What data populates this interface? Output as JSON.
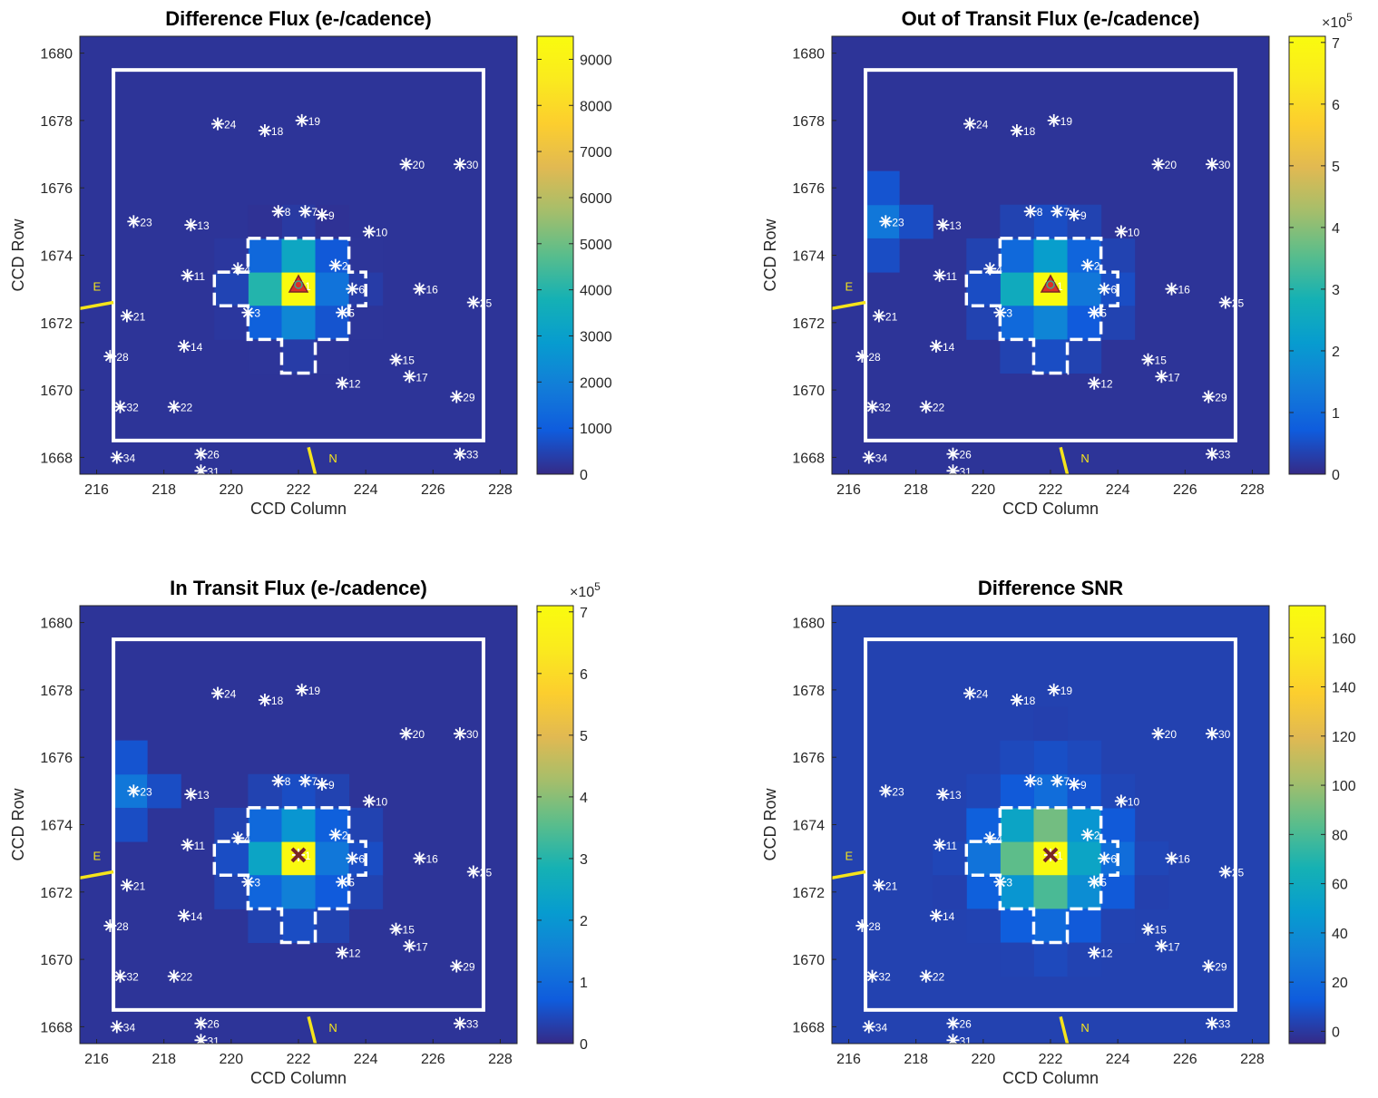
{
  "figure": {
    "panels": [
      {
        "id": "diff",
        "title": "Difference Flux (e-/cadence)",
        "xlabel": "CCD Column",
        "ylabel": "CCD Row",
        "marker": "triangle",
        "colorbar": {
          "min": 0,
          "max": 9500,
          "ticks": [
            0,
            1000,
            2000,
            3000,
            4000,
            5000,
            6000,
            7000,
            8000,
            9000
          ],
          "tick_labels": [
            "0",
            "1000",
            "2000",
            "3000",
            "4000",
            "5000",
            "6000",
            "7000",
            "8000",
            "9000"
          ],
          "exponent": ""
        }
      },
      {
        "id": "oot",
        "title": "Out of Transit Flux (e-/cadence)",
        "xlabel": "CCD Column",
        "ylabel": "CCD Row",
        "marker": "triangle",
        "colorbar": {
          "min": 0,
          "max": 7.1,
          "ticks": [
            0,
            1,
            2,
            3,
            4,
            5,
            6,
            7
          ],
          "tick_labels": [
            "0",
            "1",
            "2",
            "3",
            "4",
            "5",
            "6",
            "7"
          ],
          "exponent": "×10",
          "exponent_power": "5"
        }
      },
      {
        "id": "intr",
        "title": "In Transit Flux (e-/cadence)",
        "xlabel": "CCD Column",
        "ylabel": "CCD Row",
        "marker": "x",
        "colorbar": {
          "min": 0,
          "max": 7.1,
          "ticks": [
            0,
            1,
            2,
            3,
            4,
            5,
            6,
            7
          ],
          "tick_labels": [
            "0",
            "1",
            "2",
            "3",
            "4",
            "5",
            "6",
            "7"
          ],
          "exponent": "×10",
          "exponent_power": "5"
        }
      },
      {
        "id": "snr",
        "title": "Difference SNR",
        "xlabel": "CCD Column",
        "ylabel": "CCD Row",
        "marker": "x",
        "colorbar": {
          "min": -5,
          "max": 173,
          "ticks": [
            0,
            20,
            40,
            60,
            80,
            100,
            120,
            140,
            160
          ],
          "tick_labels": [
            "0",
            "20",
            "40",
            "60",
            "80",
            "100",
            "120",
            "140",
            "160"
          ],
          "exponent": ""
        }
      }
    ],
    "compass": {
      "east_label": "E",
      "north_label": "N"
    }
  },
  "chart_data": {
    "type": "heatmap",
    "colormap": "parula",
    "x_ticks": [
      216,
      218,
      220,
      222,
      224,
      226,
      228
    ],
    "y_ticks": [
      1668,
      1670,
      1672,
      1674,
      1676,
      1678,
      1680
    ],
    "xlim": [
      215.5,
      228.5
    ],
    "ylim": [
      1667.5,
      1680.5
    ],
    "stars": [
      {
        "label": "1",
        "x": 222.0,
        "y": 1673.1
      },
      {
        "label": "2",
        "x": 223.1,
        "y": 1673.7
      },
      {
        "label": "3",
        "x": 220.5,
        "y": 1672.3
      },
      {
        "label": "4",
        "x": 220.2,
        "y": 1673.6
      },
      {
        "label": "5",
        "x": 223.3,
        "y": 1672.3
      },
      {
        "label": "6",
        "x": 223.6,
        "y": 1673.0
      },
      {
        "label": "7",
        "x": 222.2,
        "y": 1675.3
      },
      {
        "label": "8",
        "x": 221.4,
        "y": 1675.3
      },
      {
        "label": "9",
        "x": 222.7,
        "y": 1675.2
      },
      {
        "label": "10",
        "x": 224.1,
        "y": 1674.7
      },
      {
        "label": "11",
        "x": 218.7,
        "y": 1673.4
      },
      {
        "label": "12",
        "x": 223.3,
        "y": 1670.2
      },
      {
        "label": "13",
        "x": 218.8,
        "y": 1674.9
      },
      {
        "label": "14",
        "x": 218.6,
        "y": 1671.3
      },
      {
        "label": "15",
        "x": 224.9,
        "y": 1670.9
      },
      {
        "label": "16",
        "x": 225.6,
        "y": 1673.0
      },
      {
        "label": "17",
        "x": 225.3,
        "y": 1670.4
      },
      {
        "label": "18",
        "x": 221.0,
        "y": 1677.7
      },
      {
        "label": "19",
        "x": 222.1,
        "y": 1678.0
      },
      {
        "label": "20",
        "x": 225.2,
        "y": 1676.7
      },
      {
        "label": "21",
        "x": 216.9,
        "y": 1672.2
      },
      {
        "label": "22",
        "x": 218.3,
        "y": 1669.5
      },
      {
        "label": "23",
        "x": 217.1,
        "y": 1675.0
      },
      {
        "label": "24",
        "x": 219.6,
        "y": 1677.9
      },
      {
        "label": "25",
        "x": 227.2,
        "y": 1672.6
      },
      {
        "label": "26",
        "x": 219.1,
        "y": 1668.1
      },
      {
        "label": "28",
        "x": 216.4,
        "y": 1671.0
      },
      {
        "label": "29",
        "x": 226.7,
        "y": 1669.8
      },
      {
        "label": "30",
        "x": 226.8,
        "y": 1676.7
      },
      {
        "label": "31",
        "x": 219.1,
        "y": 1667.6
      },
      {
        "label": "32",
        "x": 216.7,
        "y": 1669.5
      },
      {
        "label": "33",
        "x": 226.8,
        "y": 1668.1
      },
      {
        "label": "34",
        "x": 216.6,
        "y": 1668.0
      }
    ],
    "heatmaps": {
      "diff": [
        {
          "x": 221,
          "y": 1673,
          "v": 4000
        },
        {
          "x": 222,
          "y": 1673,
          "v": 9500
        },
        {
          "x": 223,
          "y": 1673,
          "v": 1600
        },
        {
          "x": 221,
          "y": 1674,
          "v": 1300
        },
        {
          "x": 222,
          "y": 1674,
          "v": 3300
        },
        {
          "x": 223,
          "y": 1674,
          "v": 900
        },
        {
          "x": 221,
          "y": 1672,
          "v": 1100
        },
        {
          "x": 222,
          "y": 1672,
          "v": 2200
        },
        {
          "x": 223,
          "y": 1672,
          "v": 800
        },
        {
          "x": 220,
          "y": 1673,
          "v": 500
        },
        {
          "x": 224,
          "y": 1673,
          "v": 350
        },
        {
          "x": 222,
          "y": 1675,
          "v": 300
        },
        {
          "x": 222,
          "y": 1671,
          "v": 350
        },
        {
          "x": 220,
          "y": 1674,
          "v": 250
        },
        {
          "x": 224,
          "y": 1674,
          "v": 200
        },
        {
          "x": 220,
          "y": 1672,
          "v": 250
        },
        {
          "x": 224,
          "y": 1672,
          "v": 200
        },
        {
          "x": 221,
          "y": 1671,
          "v": 200
        },
        {
          "x": 223,
          "y": 1671,
          "v": 200
        },
        {
          "x": 221,
          "y": 1675,
          "v": 150
        },
        {
          "x": 223,
          "y": 1675,
          "v": 150
        }
      ],
      "oot": [
        {
          "x": 221,
          "y": 1673,
          "v": 2.6
        },
        {
          "x": 222,
          "y": 1673,
          "v": 7.1
        },
        {
          "x": 223,
          "y": 1673,
          "v": 1.3
        },
        {
          "x": 221,
          "y": 1674,
          "v": 1.0
        },
        {
          "x": 222,
          "y": 1674,
          "v": 2.2
        },
        {
          "x": 223,
          "y": 1674,
          "v": 0.9
        },
        {
          "x": 221,
          "y": 1672,
          "v": 1.0
        },
        {
          "x": 222,
          "y": 1672,
          "v": 1.6
        },
        {
          "x": 223,
          "y": 1672,
          "v": 0.7
        },
        {
          "x": 220,
          "y": 1673,
          "v": 0.5
        },
        {
          "x": 224,
          "y": 1673,
          "v": 0.5
        },
        {
          "x": 222,
          "y": 1675,
          "v": 0.5
        },
        {
          "x": 222,
          "y": 1671,
          "v": 0.5
        },
        {
          "x": 220,
          "y": 1674,
          "v": 0.35
        },
        {
          "x": 224,
          "y": 1674,
          "v": 0.35
        },
        {
          "x": 220,
          "y": 1672,
          "v": 0.35
        },
        {
          "x": 224,
          "y": 1672,
          "v": 0.35
        },
        {
          "x": 221,
          "y": 1671,
          "v": 0.35
        },
        {
          "x": 223,
          "y": 1671,
          "v": 0.35
        },
        {
          "x": 221,
          "y": 1675,
          "v": 0.35
        },
        {
          "x": 223,
          "y": 1675,
          "v": 0.35
        },
        {
          "x": 217,
          "y": 1675,
          "v": 1.3
        },
        {
          "x": 217,
          "y": 1676,
          "v": 0.6
        },
        {
          "x": 217,
          "y": 1674,
          "v": 0.5
        },
        {
          "x": 218,
          "y": 1675,
          "v": 0.5
        }
      ],
      "intr": [
        {
          "x": 221,
          "y": 1673,
          "v": 2.4
        },
        {
          "x": 222,
          "y": 1673,
          "v": 7.0
        },
        {
          "x": 223,
          "y": 1673,
          "v": 1.3
        },
        {
          "x": 221,
          "y": 1674,
          "v": 1.0
        },
        {
          "x": 222,
          "y": 1674,
          "v": 2.0
        },
        {
          "x": 223,
          "y": 1674,
          "v": 0.8
        },
        {
          "x": 221,
          "y": 1672,
          "v": 0.9
        },
        {
          "x": 222,
          "y": 1672,
          "v": 1.5
        },
        {
          "x": 223,
          "y": 1672,
          "v": 0.7
        },
        {
          "x": 220,
          "y": 1673,
          "v": 0.5
        },
        {
          "x": 224,
          "y": 1673,
          "v": 0.5
        },
        {
          "x": 222,
          "y": 1675,
          "v": 0.5
        },
        {
          "x": 222,
          "y": 1671,
          "v": 0.5
        },
        {
          "x": 220,
          "y": 1674,
          "v": 0.35
        },
        {
          "x": 224,
          "y": 1674,
          "v": 0.35
        },
        {
          "x": 220,
          "y": 1672,
          "v": 0.35
        },
        {
          "x": 224,
          "y": 1672,
          "v": 0.35
        },
        {
          "x": 221,
          "y": 1671,
          "v": 0.35
        },
        {
          "x": 223,
          "y": 1671,
          "v": 0.35
        },
        {
          "x": 221,
          "y": 1675,
          "v": 0.35
        },
        {
          "x": 223,
          "y": 1675,
          "v": 0.35
        },
        {
          "x": 217,
          "y": 1675,
          "v": 1.3
        },
        {
          "x": 217,
          "y": 1676,
          "v": 0.6
        },
        {
          "x": 217,
          "y": 1674,
          "v": 0.5
        },
        {
          "x": 218,
          "y": 1675,
          "v": 0.5
        }
      ],
      "snr": [
        {
          "x": 221,
          "y": 1673,
          "v": 85
        },
        {
          "x": 222,
          "y": 1673,
          "v": 173
        },
        {
          "x": 223,
          "y": 1673,
          "v": 55
        },
        {
          "x": 221,
          "y": 1674,
          "v": 55
        },
        {
          "x": 222,
          "y": 1674,
          "v": 90
        },
        {
          "x": 223,
          "y": 1674,
          "v": 45
        },
        {
          "x": 221,
          "y": 1672,
          "v": 45
        },
        {
          "x": 222,
          "y": 1672,
          "v": 80
        },
        {
          "x": 223,
          "y": 1672,
          "v": 40
        },
        {
          "x": 220,
          "y": 1673,
          "v": 25
        },
        {
          "x": 224,
          "y": 1673,
          "v": 22
        },
        {
          "x": 222,
          "y": 1675,
          "v": 22
        },
        {
          "x": 222,
          "y": 1671,
          "v": 20
        },
        {
          "x": 220,
          "y": 1674,
          "v": 15
        },
        {
          "x": 224,
          "y": 1674,
          "v": 12
        },
        {
          "x": 220,
          "y": 1672,
          "v": 15
        },
        {
          "x": 224,
          "y": 1672,
          "v": 12
        },
        {
          "x": 221,
          "y": 1671,
          "v": 14
        },
        {
          "x": 223,
          "y": 1671,
          "v": 12
        },
        {
          "x": 221,
          "y": 1675,
          "v": 12
        },
        {
          "x": 223,
          "y": 1675,
          "v": 10
        },
        {
          "x": 222,
          "y": 1676,
          "v": 8
        },
        {
          "x": 221,
          "y": 1676,
          "v": 6
        },
        {
          "x": 223,
          "y": 1676,
          "v": 6
        },
        {
          "x": 220,
          "y": 1675,
          "v": 5
        },
        {
          "x": 224,
          "y": 1675,
          "v": 5
        },
        {
          "x": 222,
          "y": 1670,
          "v": 6
        },
        {
          "x": 221,
          "y": 1670,
          "v": 4
        },
        {
          "x": 223,
          "y": 1670,
          "v": 4
        },
        {
          "x": 219,
          "y": 1673,
          "v": 5
        },
        {
          "x": 225,
          "y": 1673,
          "v": 5
        },
        {
          "x": 220,
          "y": 1671,
          "v": 4
        },
        {
          "x": 224,
          "y": 1671,
          "v": 4
        },
        {
          "x": 222,
          "y": 1677,
          "v": 3
        },
        {
          "x": 219,
          "y": 1672,
          "v": 3
        },
        {
          "x": 225,
          "y": 1672,
          "v": 3
        }
      ]
    }
  }
}
